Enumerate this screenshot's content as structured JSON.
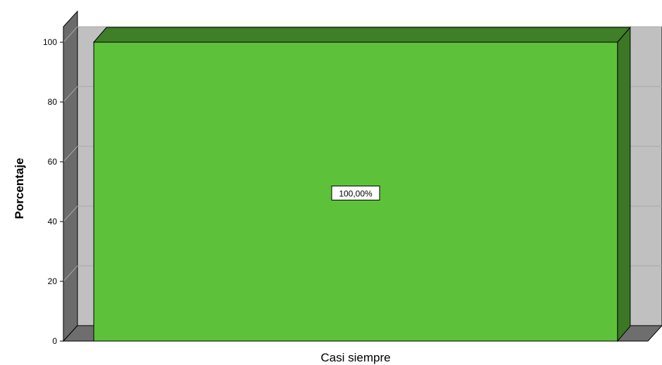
{
  "chart_data": {
    "type": "bar",
    "categories": [
      "Casi siempre"
    ],
    "values": [
      100
    ],
    "data_labels": [
      "100,00%"
    ],
    "ylabel": "Porcentaje",
    "xlabel": "",
    "ylim": [
      0,
      100
    ],
    "yticks": [
      0,
      20,
      40,
      60,
      80,
      100
    ],
    "grid": true,
    "style_3d": true,
    "colors": {
      "bar_front": "#5dc23a",
      "bar_top": "#3e7f27",
      "bar_side": "#3b7725",
      "back_wall": "#c0c0c0",
      "left_wall": "#6b6b6b",
      "floor": "#6e6e6e",
      "grid": "#a8a8a8"
    }
  }
}
